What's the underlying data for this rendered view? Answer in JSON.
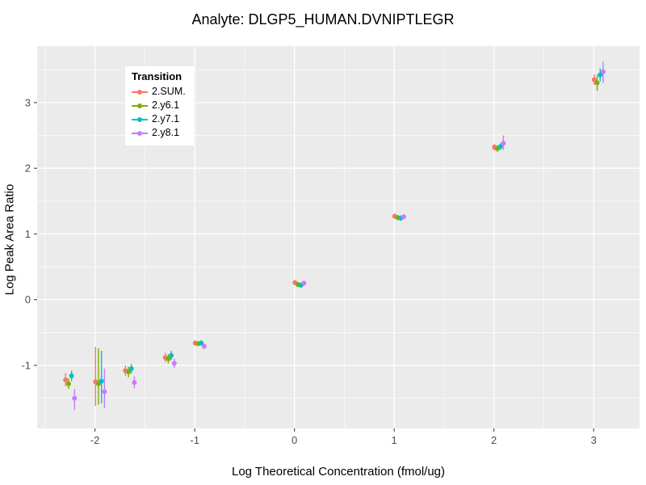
{
  "chart_data": {
    "type": "scatter",
    "title": "Analyte: DLGP5_HUMAN.DVNIPTLEGR",
    "xlabel": "Log Theoretical Concentration (fmol/ug)",
    "ylabel": "Log Peak Area Ratio",
    "legend_title": "Transition",
    "legend_position": "inside-top-left",
    "xlim": [
      -2.58,
      3.46
    ],
    "ylim": [
      -1.96,
      3.86
    ],
    "xticks": [
      -2,
      -1,
      0,
      1,
      2,
      3
    ],
    "yticks": [
      -1,
      0,
      1,
      2,
      3
    ],
    "panel_background": "#ebebeb",
    "grid_color": "#ffffff",
    "tick_label_color": "#4d4d4d",
    "error_bars": true,
    "series": [
      {
        "name": "2.SUM.",
        "color": "#f8766d",
        "points": [
          {
            "x": -2.25,
            "y": -1.22,
            "lo": -1.32,
            "hi": -1.12
          },
          {
            "x": -1.95,
            "y": -1.25,
            "lo": -1.62,
            "hi": -0.72
          },
          {
            "x": -1.65,
            "y": -1.08,
            "lo": -1.16,
            "hi": -1.0
          },
          {
            "x": -1.25,
            "y": -0.88,
            "lo": -0.95,
            "hi": -0.81
          },
          {
            "x": -0.95,
            "y": -0.66,
            "lo": -0.7,
            "hi": -0.62
          },
          {
            "x": 0.05,
            "y": 0.26,
            "lo": 0.22,
            "hi": 0.3
          },
          {
            "x": 1.05,
            "y": 1.27,
            "lo": 1.23,
            "hi": 1.31
          },
          {
            "x": 2.05,
            "y": 2.32,
            "lo": 2.27,
            "hi": 2.37
          },
          {
            "x": 3.05,
            "y": 3.35,
            "lo": 3.27,
            "hi": 3.43
          }
        ]
      },
      {
        "name": "2.y6.1",
        "color": "#7cae00",
        "points": [
          {
            "x": -2.25,
            "y": -1.28,
            "lo": -1.36,
            "hi": -1.2
          },
          {
            "x": -1.95,
            "y": -1.28,
            "lo": -1.6,
            "hi": -0.74
          },
          {
            "x": -1.65,
            "y": -1.1,
            "lo": -1.18,
            "hi": -1.02
          },
          {
            "x": -1.25,
            "y": -0.9,
            "lo": -0.97,
            "hi": -0.83
          },
          {
            "x": -0.95,
            "y": -0.67,
            "lo": -0.71,
            "hi": -0.63
          },
          {
            "x": 0.05,
            "y": 0.23,
            "lo": 0.19,
            "hi": 0.27
          },
          {
            "x": 1.05,
            "y": 1.25,
            "lo": 1.21,
            "hi": 1.29
          },
          {
            "x": 2.05,
            "y": 2.3,
            "lo": 2.25,
            "hi": 2.35
          },
          {
            "x": 3.05,
            "y": 3.3,
            "lo": 3.18,
            "hi": 3.42
          }
        ]
      },
      {
        "name": "2.y7.1",
        "color": "#00bfc4",
        "points": [
          {
            "x": -2.25,
            "y": -1.16,
            "lo": -1.24,
            "hi": -1.08
          },
          {
            "x": -1.95,
            "y": -1.24,
            "lo": -1.58,
            "hi": -0.78
          },
          {
            "x": -1.65,
            "y": -1.05,
            "lo": -1.12,
            "hi": -0.98
          },
          {
            "x": -1.25,
            "y": -0.85,
            "lo": -0.92,
            "hi": -0.78
          },
          {
            "x": -0.95,
            "y": -0.66,
            "lo": -0.7,
            "hi": -0.62
          },
          {
            "x": 0.05,
            "y": 0.22,
            "lo": 0.18,
            "hi": 0.26
          },
          {
            "x": 1.05,
            "y": 1.24,
            "lo": 1.2,
            "hi": 1.28
          },
          {
            "x": 2.05,
            "y": 2.33,
            "lo": 2.28,
            "hi": 2.38
          },
          {
            "x": 3.05,
            "y": 3.42,
            "lo": 3.32,
            "hi": 3.52
          }
        ]
      },
      {
        "name": "2.y8.1",
        "color": "#c77cff",
        "points": [
          {
            "x": -2.25,
            "y": -1.5,
            "lo": -1.68,
            "hi": -1.36
          },
          {
            "x": -1.95,
            "y": -1.4,
            "lo": -1.65,
            "hi": -1.05
          },
          {
            "x": -1.65,
            "y": -1.26,
            "lo": -1.35,
            "hi": -1.17
          },
          {
            "x": -1.25,
            "y": -0.97,
            "lo": -1.04,
            "hi": -0.9
          },
          {
            "x": -0.95,
            "y": -0.71,
            "lo": -0.75,
            "hi": -0.67
          },
          {
            "x": 0.05,
            "y": 0.25,
            "lo": 0.21,
            "hi": 0.29
          },
          {
            "x": 1.05,
            "y": 1.26,
            "lo": 1.22,
            "hi": 1.3
          },
          {
            "x": 2.05,
            "y": 2.38,
            "lo": 2.28,
            "hi": 2.5
          },
          {
            "x": 3.05,
            "y": 3.47,
            "lo": 3.3,
            "hi": 3.62
          }
        ]
      }
    ]
  }
}
